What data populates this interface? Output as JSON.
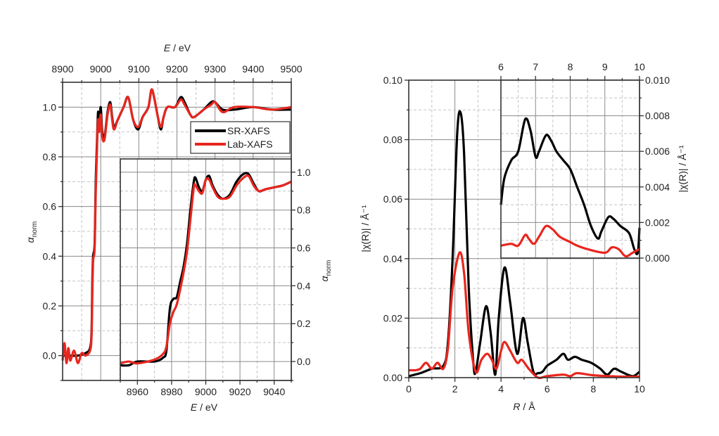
{
  "chart_data": [
    {
      "id": "xanes-main",
      "type": "line",
      "xlabel": {
        "var": "E",
        "unit": " / eV"
      },
      "ylabel": {
        "var": "α",
        "sub": "norm"
      },
      "xlim": [
        8900,
        9500
      ],
      "ylim": [
        -0.1,
        1.1
      ],
      "x_ticks": [
        "8900",
        "9000",
        "9100",
        "9200",
        "9300",
        "9400",
        "9500"
      ],
      "y_ticks": [
        "0.0",
        "0.2",
        "0.4",
        "0.6",
        "0.8",
        "1.0"
      ],
      "grid": true,
      "legend": {
        "position": "top-right",
        "entries": [
          "SR-XAFS",
          "Lab-XAFS"
        ]
      },
      "series": [
        {
          "name": "SR-XAFS",
          "color": "#000000",
          "x": [
            8900,
            8920,
            8940,
            8960,
            8972,
            8976,
            8978,
            8980,
            8984,
            8987,
            8990,
            8993,
            8996,
            9000,
            9004,
            9010,
            9018,
            9025,
            9030,
            9035,
            9045,
            9060,
            9072,
            9085,
            9098,
            9110,
            9125,
            9133,
            9140,
            9150,
            9158,
            9165,
            9175,
            9195,
            9210,
            9220,
            9235,
            9245,
            9270,
            9290,
            9300,
            9320,
            9350,
            9400,
            9450,
            9500
          ],
          "y": [
            0.0,
            0.0,
            0.0,
            0.01,
            0.03,
            0.1,
            0.3,
            0.4,
            0.45,
            0.7,
            0.85,
            0.98,
            0.93,
            1.0,
            0.9,
            0.88,
            0.98,
            1.02,
            0.96,
            0.92,
            0.95,
            1.0,
            1.04,
            0.95,
            0.91,
            0.96,
            1.0,
            1.07,
            1.04,
            0.96,
            0.91,
            0.96,
            1.0,
            1.0,
            1.04,
            1.02,
            0.97,
            0.96,
            0.99,
            1.02,
            1.02,
            0.99,
            0.99,
            1.0,
            0.99,
            0.99
          ]
        },
        {
          "name": "Lab-XAFS",
          "color": "#e8261e",
          "x": [
            8900,
            8905,
            8910,
            8915,
            8920,
            8930,
            8940,
            8950,
            8960,
            8972,
            8976,
            8978,
            8980,
            8984,
            8987,
            8990,
            8993,
            8996,
            9000,
            9004,
            9010,
            9018,
            9025,
            9030,
            9035,
            9045,
            9060,
            9072,
            9085,
            9098,
            9110,
            9125,
            9133,
            9140,
            9150,
            9158,
            9165,
            9175,
            9195,
            9210,
            9220,
            9235,
            9245,
            9270,
            9290,
            9300,
            9320,
            9350,
            9400,
            9450,
            9500
          ],
          "y": [
            -0.02,
            0.05,
            -0.03,
            0.03,
            -0.02,
            0.02,
            -0.03,
            0.01,
            0.0,
            0.02,
            0.08,
            0.25,
            0.38,
            0.43,
            0.66,
            0.82,
            0.95,
            0.9,
            0.97,
            0.88,
            0.87,
            0.97,
            1.01,
            0.95,
            0.91,
            0.95,
            1.0,
            1.04,
            0.95,
            0.92,
            0.96,
            1.0,
            1.07,
            1.04,
            0.96,
            0.92,
            0.96,
            1.0,
            1.0,
            1.03,
            1.01,
            0.97,
            0.96,
            0.99,
            1.01,
            1.02,
            0.98,
            1.0,
            1.0,
            0.99,
            1.0
          ]
        }
      ]
    },
    {
      "id": "xanes-inset",
      "type": "line",
      "xlabel": {
        "var": "E",
        "unit": " / eV"
      },
      "ylabel": {
        "var": "α",
        "sub": "norm"
      },
      "xlim": [
        8950,
        9050
      ],
      "ylim": [
        -0.1,
        1.07
      ],
      "x_ticks": [
        "8960",
        "8980",
        "9000",
        "9020",
        "9040"
      ],
      "y_ticks": [
        "0.0",
        "0.2",
        "0.4",
        "0.6",
        "0.8",
        "1.0"
      ],
      "grid": true,
      "series": [
        {
          "name": "SR-XAFS",
          "color": "#000000",
          "x": [
            8950,
            8955,
            8960,
            8970,
            8975,
            8977,
            8979,
            8981,
            8983,
            8985,
            8987,
            8989,
            8991,
            8993,
            8994,
            8996,
            8998,
            9000,
            9002,
            9004,
            9007,
            9010,
            9014,
            9018,
            9022,
            9025,
            9028,
            9031,
            9035,
            9040,
            9045,
            9050
          ],
          "y": [
            -0.02,
            -0.02,
            0.0,
            0.0,
            0.02,
            0.06,
            0.28,
            0.33,
            0.34,
            0.42,
            0.5,
            0.62,
            0.8,
            0.95,
            0.97,
            0.92,
            0.9,
            0.96,
            0.98,
            0.93,
            0.88,
            0.86,
            0.88,
            0.95,
            0.99,
            0.99,
            0.94,
            0.9,
            0.91,
            0.92,
            0.93,
            0.95
          ]
        },
        {
          "name": "Lab-XAFS",
          "color": "#e8261e",
          "x": [
            8950,
            8955,
            8960,
            8970,
            8975,
            8977,
            8979,
            8981,
            8983,
            8985,
            8987,
            8989,
            8991,
            8993,
            8994,
            8996,
            8998,
            9000,
            9002,
            9004,
            9007,
            9010,
            9014,
            9018,
            9022,
            9025,
            9028,
            9031,
            9035,
            9040,
            9045,
            9050
          ],
          "y": [
            -0.01,
            0.0,
            -0.01,
            0.01,
            0.04,
            0.08,
            0.2,
            0.26,
            0.3,
            0.38,
            0.47,
            0.58,
            0.75,
            0.92,
            0.93,
            0.9,
            0.89,
            0.96,
            0.96,
            0.92,
            0.87,
            0.86,
            0.87,
            0.93,
            0.97,
            0.98,
            0.93,
            0.9,
            0.91,
            0.92,
            0.93,
            0.95
          ]
        }
      ]
    },
    {
      "id": "ft-main",
      "type": "line",
      "xlabel": {
        "var": "R",
        "unit": " / Å"
      },
      "ylabel": {
        "text": "|χ(R)| / Å⁻¹"
      },
      "xlim": [
        0,
        10
      ],
      "ylim": [
        0,
        0.1
      ],
      "x_ticks": [
        "0",
        "2",
        "4",
        "6",
        "8",
        "10"
      ],
      "y_ticks": [
        "0.00",
        "0.02",
        "0.04",
        "0.06",
        "0.08",
        "0.10"
      ],
      "grid": true,
      "series": [
        {
          "name": "SR-XAFS",
          "color": "#000000",
          "x": [
            0,
            0.5,
            1.0,
            1.5,
            1.7,
            1.9,
            2.1,
            2.25,
            2.4,
            2.6,
            2.8,
            2.9,
            3.1,
            3.35,
            3.55,
            3.75,
            3.9,
            4.15,
            4.4,
            4.7,
            4.95,
            5.15,
            5.4,
            5.6,
            5.8,
            6.0,
            6.4,
            6.7,
            6.9,
            7.2,
            7.5,
            7.9,
            8.3,
            8.6,
            8.9,
            9.2,
            9.7,
            10
          ],
          "y": [
            0.0005,
            0.0015,
            0.003,
            0.004,
            0.012,
            0.04,
            0.082,
            0.089,
            0.075,
            0.03,
            0.005,
            0.002,
            0.012,
            0.024,
            0.015,
            0.001,
            0.02,
            0.037,
            0.025,
            0.008,
            0.02,
            0.012,
            0.002,
            0.0015,
            0.002,
            0.004,
            0.006,
            0.008,
            0.006,
            0.007,
            0.006,
            0.005,
            0.003,
            0.001,
            0.003,
            0.002,
            0.0005,
            0.002
          ]
        },
        {
          "name": "Lab-XAFS",
          "color": "#e8261e",
          "x": [
            0,
            0.3,
            0.5,
            0.75,
            1.0,
            1.25,
            1.5,
            1.7,
            1.9,
            2.2,
            2.4,
            2.6,
            2.9,
            3.15,
            3.4,
            3.6,
            3.8,
            4.0,
            4.15,
            4.4,
            4.7,
            4.9,
            5.2,
            5.6,
            6.0,
            6.7,
            7.0,
            7.3,
            8.0,
            9.0,
            10
          ],
          "y": [
            0.0025,
            0.0025,
            0.003,
            0.005,
            0.003,
            0.005,
            0.003,
            0.01,
            0.03,
            0.042,
            0.035,
            0.015,
            0.002,
            0.006,
            0.008,
            0.006,
            0.003,
            0.009,
            0.012,
            0.009,
            0.005,
            0.006,
            0.003,
            0.0,
            0.0005,
            0.001,
            0.0005,
            0.0015,
            0.0008,
            0.0004,
            0.0003
          ]
        }
      ]
    },
    {
      "id": "ft-inset",
      "type": "line",
      "ylabel": {
        "text": "|χ(R)| / Å⁻¹"
      },
      "xlim": [
        6,
        10
      ],
      "ylim": [
        0,
        0.01
      ],
      "x_ticks": [
        "6",
        "7",
        "8",
        "9",
        "10"
      ],
      "y_ticks": [
        "0.000",
        "0.002",
        "0.004",
        "0.006",
        "0.008",
        "0.010"
      ],
      "grid": true,
      "series": [
        {
          "name": "SR-XAFS",
          "color": "#000000",
          "x": [
            6.0,
            6.1,
            6.3,
            6.5,
            6.7,
            6.85,
            7.0,
            7.1,
            7.3,
            7.45,
            7.6,
            7.8,
            8.0,
            8.2,
            8.4,
            8.6,
            8.8,
            8.9,
            9.1,
            9.25,
            9.45,
            9.7,
            9.85,
            9.95,
            10.0
          ],
          "y": [
            0.003,
            0.0045,
            0.0055,
            0.006,
            0.0078,
            0.0072,
            0.0057,
            0.006,
            0.0069,
            0.0066,
            0.006,
            0.0055,
            0.005,
            0.004,
            0.003,
            0.0018,
            0.0011,
            0.0015,
            0.0023,
            0.0022,
            0.0018,
            0.0014,
            0.0005,
            0.0003,
            0.0017
          ]
        },
        {
          "name": "Lab-XAFS",
          "color": "#e8261e",
          "x": [
            6,
            6.3,
            6.5,
            6.7,
            6.8,
            6.95,
            7.1,
            7.3,
            7.5,
            7.7,
            8,
            8.2,
            8.5,
            9.0,
            9.2,
            9.4,
            9.6,
            9.8,
            10
          ],
          "y": [
            0.0007,
            0.0008,
            0.0007,
            0.0013,
            0.0011,
            0.0008,
            0.0012,
            0.0018,
            0.0016,
            0.0012,
            0.0009,
            0.0007,
            0.0005,
            0.0003,
            0.0006,
            0.0005,
            0.0001,
            0.0003,
            0.0005
          ]
        }
      ]
    }
  ]
}
